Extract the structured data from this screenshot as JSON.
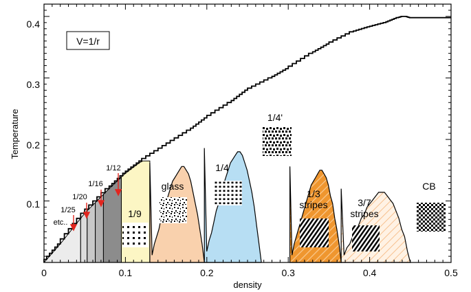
{
  "chart_data": {
    "type": "area",
    "xlabel": "density",
    "ylabel": "Temperature",
    "xlim": [
      0,
      0.5
    ],
    "ylim": [
      0,
      0.42
    ],
    "x_ticks": [
      "0",
      "0.1",
      "0.2",
      "0.3",
      "0.4",
      "0.5"
    ],
    "y_ticks": [
      "0.1",
      "0.2",
      "0.3",
      "0.4"
    ],
    "legend_box": "V=1/r",
    "melting_curve": {
      "x": [
        0.0,
        0.02,
        0.05,
        0.08,
        0.1,
        0.12,
        0.15,
        0.18,
        0.2,
        0.23,
        0.25,
        0.28,
        0.3,
        0.33,
        0.35,
        0.38,
        0.4,
        0.42,
        0.435,
        0.44,
        0.445,
        0.45,
        0.5
      ],
      "y": [
        0.0,
        0.03,
        0.08,
        0.12,
        0.145,
        0.165,
        0.19,
        0.215,
        0.235,
        0.26,
        0.28,
        0.3,
        0.315,
        0.34,
        0.355,
        0.375,
        0.383,
        0.39,
        0.398,
        0.4,
        0.4,
        0.398,
        0.398
      ]
    },
    "regions": [
      {
        "label": "etc..",
        "fill": "#ececec",
        "x": [
          0.0,
          0.045
        ],
        "y_top": 0.08
      },
      {
        "label": "1/25",
        "fill": "#dcdcdc",
        "x": [
          0.045,
          0.053
        ],
        "y_top": 0.095
      },
      {
        "label": "1/20",
        "fill": "#c8c8c8",
        "x": [
          0.053,
          0.063
        ],
        "y_top": 0.11
      },
      {
        "label": "1/16",
        "fill": "#b2b2b2",
        "x": [
          0.063,
          0.073
        ],
        "y_top": 0.13
      },
      {
        "label": "1/12",
        "fill": "#8c8c8c",
        "x": [
          0.073,
          0.095
        ],
        "y_top": 0.155
      },
      {
        "label": "1/9",
        "fill": "#fcf6c4",
        "x": [
          0.095,
          0.13
        ],
        "y_top": 0.165
      },
      {
        "label": "glass",
        "fill": "#f9d1ad",
        "x": [
          0.13,
          0.197
        ],
        "y_top": 0.177
      },
      {
        "label": "1/4",
        "fill": "#b7def3",
        "x": [
          0.197,
          0.267
        ],
        "y_top": 0.205
      },
      {
        "label": "1/3 stripes",
        "fill": "#ef962f",
        "x": [
          0.302,
          0.365
        ],
        "y_top": 0.17
      },
      {
        "label": "3/7 stripes",
        "fill": "#fde2c5",
        "x": [
          0.365,
          0.45
        ],
        "y_top": 0.13
      }
    ],
    "annotations": [
      "1/12",
      "1/16",
      "1/20",
      "1/25",
      "etc..",
      "1/4'",
      "CB",
      "glass",
      "1/9",
      "1/4",
      "1/3",
      "stripes",
      "3/7",
      "stripes"
    ]
  }
}
